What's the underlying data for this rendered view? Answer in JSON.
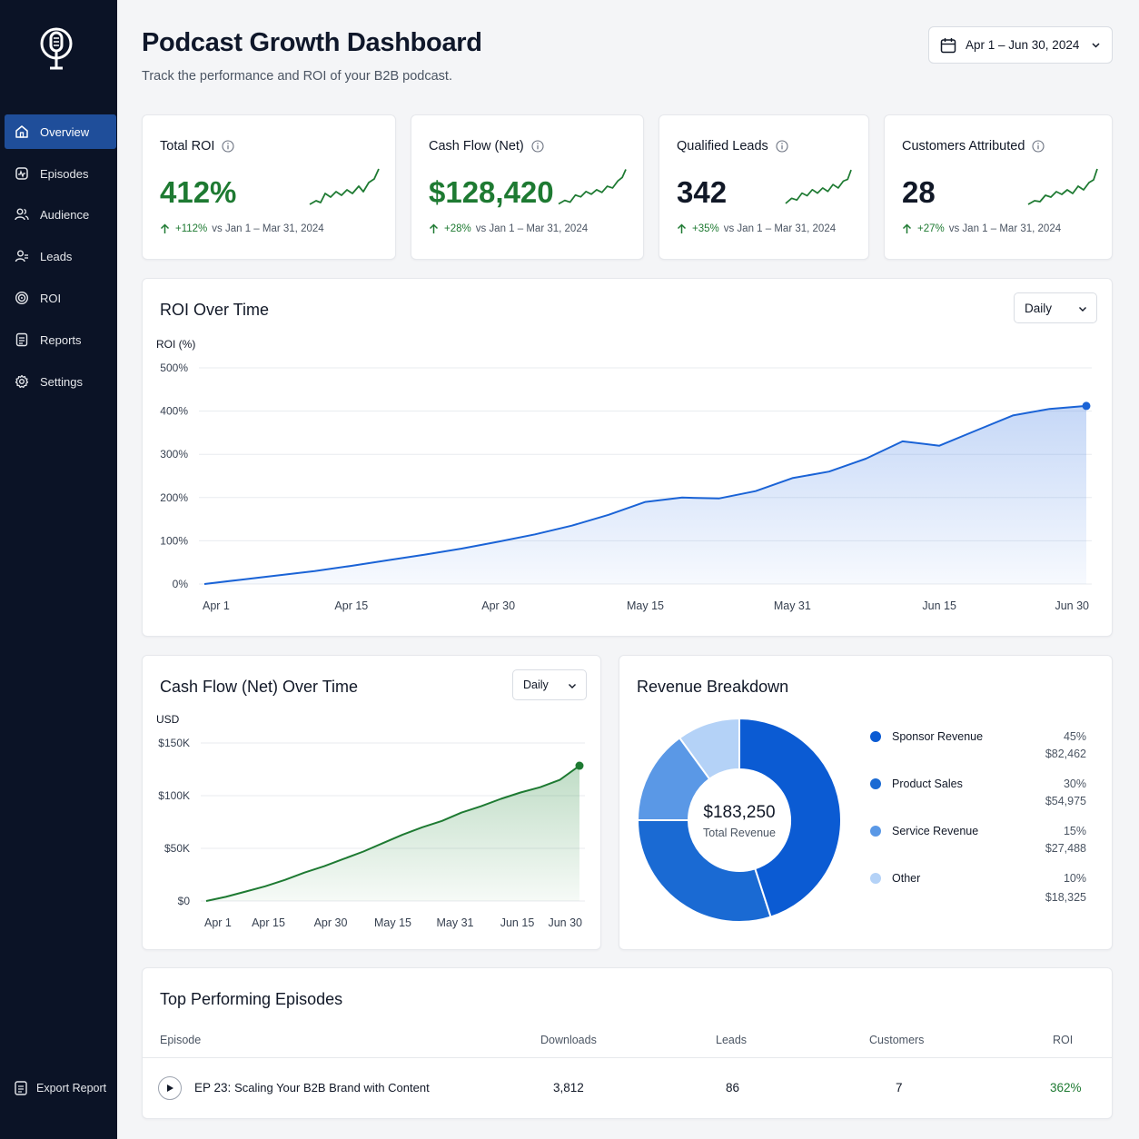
{
  "sidebar": {
    "items": [
      {
        "label": "Overview",
        "icon": "home-icon",
        "active": true
      },
      {
        "label": "Episodes",
        "icon": "episodes-icon",
        "active": false
      },
      {
        "label": "Audience",
        "icon": "users-icon",
        "active": false
      },
      {
        "label": "Leads",
        "icon": "leads-icon",
        "active": false
      },
      {
        "label": "ROI",
        "icon": "target-icon",
        "active": false
      },
      {
        "label": "Reports",
        "icon": "document-icon",
        "active": false
      },
      {
        "label": "Settings",
        "icon": "gear-icon",
        "active": false
      }
    ],
    "export_label": "Export Report"
  },
  "header": {
    "title": "Podcast Growth Dashboard",
    "subtitle": "Track the performance and ROI of your B2B podcast.",
    "date_range": "Apr 1 – Jun 30, 2024"
  },
  "kpis": [
    {
      "title": "Total ROI",
      "value": "412%",
      "delta": "+112%",
      "compare": "vs Jan 1 – Mar 31, 2024",
      "value_color": "green"
    },
    {
      "title": "Cash Flow (Net)",
      "value": "$128,420",
      "delta": "+28%",
      "compare": "vs Jan 1 – Mar 31, 2024",
      "value_color": "green"
    },
    {
      "title": "Qualified Leads",
      "value": "342",
      "delta": "+35%",
      "compare": "vs Jan 1 – Mar 31, 2024",
      "value_color": "dark"
    },
    {
      "title": "Customers Attributed",
      "value": "28",
      "delta": "+27%",
      "compare": "vs Jan 1 – Mar 31, 2024",
      "value_color": "dark"
    }
  ],
  "roi_chart": {
    "title": "ROI Over Time",
    "select": "Daily"
  },
  "cashflow_chart": {
    "title": "Cash Flow (Net) Over Time",
    "select": "Daily"
  },
  "revenue": {
    "title": "Revenue Breakdown",
    "total": "$183,250",
    "total_label": "Total Revenue",
    "items": [
      {
        "name": "Sponsor Revenue",
        "pct": "45%",
        "amount": "$82,462",
        "color": "#0b5bd3"
      },
      {
        "name": "Product Sales",
        "pct": "30%",
        "amount": "$54,975",
        "color": "#1a6ad3"
      },
      {
        "name": "Service Revenue",
        "pct": "15%",
        "amount": "$27,488",
        "color": "#5a98e6"
      },
      {
        "name": "Other",
        "pct": "10%",
        "amount": "$18,325",
        "color": "#b4d2f7"
      }
    ]
  },
  "episodes": {
    "title": "Top Performing Episodes",
    "columns": [
      "Episode",
      "Downloads",
      "Leads",
      "Customers",
      "ROI"
    ],
    "rows": [
      {
        "episode_num": "EP 23:",
        "episode_title": "Scaling Your B2B Brand with Content",
        "downloads": "3,812",
        "leads": "86",
        "customers": "7",
        "roi": "362%"
      }
    ]
  },
  "colors": {
    "sidebar_bg": "#0b1326",
    "active_nav": "#1f4e9a",
    "positive_green": "#1e7a32",
    "roi_line": "#1a63d6",
    "cashflow_line": "#1e7a32"
  },
  "chart_data": [
    {
      "type": "area",
      "title": "ROI Over Time",
      "ylabel": "ROI (%)",
      "xlabel": "",
      "ylim": [
        0,
        500
      ],
      "yticks": [
        "0%",
        "100%",
        "200%",
        "300%",
        "400%",
        "500%"
      ],
      "x_tick_labels": [
        "Apr 1",
        "Apr 15",
        "Apr 30",
        "May 15",
        "May 31",
        "Jun 15",
        "Jun 30"
      ],
      "grid": true,
      "series": [
        {
          "values": [
            0,
            10,
            20,
            30,
            42,
            55,
            68,
            82,
            98,
            115,
            135,
            160,
            190,
            200,
            198,
            215,
            245,
            260,
            290,
            330,
            320,
            355,
            390,
            405,
            412
          ]
        }
      ]
    },
    {
      "type": "area",
      "title": "Cash Flow (Net) Over Time",
      "ylabel": "USD",
      "xlabel": "",
      "ylim": [
        0,
        150000
      ],
      "yticks": [
        "$0",
        "$50K",
        "$100K",
        "$150K"
      ],
      "x_tick_labels": [
        "Apr 1",
        "Apr 15",
        "Apr 30",
        "May 15",
        "May 31",
        "Jun 15",
        "Jun 30"
      ],
      "grid": true,
      "series": [
        {
          "values": [
            0,
            4000,
            9000,
            14000,
            20000,
            27000,
            33000,
            40000,
            47000,
            55000,
            63000,
            70000,
            76000,
            84000,
            90000,
            97000,
            103000,
            108000,
            115000,
            128420
          ]
        }
      ]
    },
    {
      "type": "pie",
      "title": "Revenue Breakdown",
      "categories": [
        "Sponsor Revenue",
        "Product Sales",
        "Service Revenue",
        "Other"
      ],
      "values": [
        45,
        30,
        15,
        10
      ]
    }
  ]
}
